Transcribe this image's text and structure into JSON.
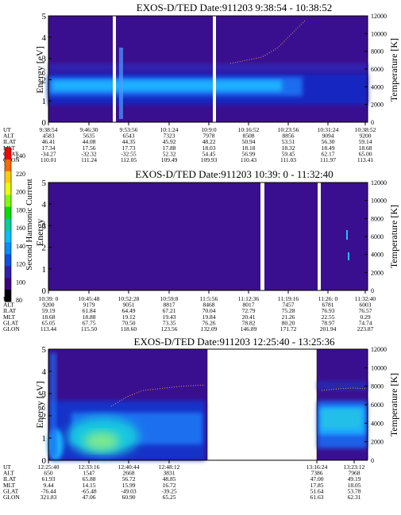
{
  "colorbar": {
    "label": "Second Harmonic Current",
    "ticks": [
      "240",
      "220",
      "200",
      "180",
      "160",
      "140",
      "120",
      "100",
      "80"
    ],
    "colors": [
      "#ff0000",
      "#ff6a00",
      "#ffcc00",
      "#e8ff00",
      "#7dff00",
      "#00e000",
      "#00d0a0",
      "#00c0ff",
      "#0090ff",
      "#1050e0",
      "#3020b0",
      "#400080",
      "#000000"
    ]
  },
  "chart_data": [
    {
      "type": "heatmap",
      "title": "EXOS-D/TED    Date:911203   9:38:54 - 10:38:52",
      "ylabel": "Energy [eV]",
      "ylabel_right": "Temperature [K]",
      "ylim": [
        0,
        5
      ],
      "yticks": [
        "0",
        "1",
        "2",
        "3",
        "4",
        "5"
      ],
      "ylim_right": [
        0,
        12000
      ],
      "yticks_right": [
        "0",
        "2000",
        "4000",
        "6000",
        "8000",
        "10000",
        "12000"
      ],
      "row_labels": [
        "UT",
        "ALT",
        "ILAT",
        "MLT",
        "GLAT",
        "GLON"
      ],
      "columns": [
        [
          "9:38:54",
          "4583",
          "46.41",
          "17.34",
          "-34.27",
          "110.01"
        ],
        [
          "9:46:30",
          "5635",
          "44.08",
          "17.56",
          "-32.32",
          "111.24"
        ],
        [
          "9:53:56",
          "6543",
          "44.35",
          "17.73",
          "-32.55",
          "112.05"
        ],
        [
          "10:1:24",
          "7323",
          "45.92",
          "17.88",
          "52.32",
          "109.49"
        ],
        [
          "10:9:0",
          "7978",
          "48.22",
          "18.03",
          "54.45",
          "109.93"
        ],
        [
          "10:16:52",
          "8508",
          "50.94",
          "18.18",
          "56.99",
          "110.43"
        ],
        [
          "10:23:56",
          "8856",
          "53.51",
          "18.32",
          "59.45",
          "111.03"
        ],
        [
          "10:31:24",
          "9094",
          "56.30",
          "18.49",
          "62.17",
          "111.97"
        ],
        [
          "10:38:52",
          "9200",
          "59.14",
          "18.68",
          "65.00",
          "113.41"
        ]
      ]
    },
    {
      "type": "heatmap",
      "title": "EXOS-D/TED    Date:911203   10:39: 0 - 11:32:40",
      "ylabel": "Energy",
      "ylabel_right": "Temperature [K]",
      "ylim": [
        0,
        5
      ],
      "yticks": [
        "0",
        "1",
        "2",
        "3",
        "4",
        "5"
      ],
      "ylim_right": [
        0,
        12000
      ],
      "yticks_right": [
        "0",
        "2000",
        "4000",
        "6000",
        "8000",
        "10000",
        "12000"
      ],
      "row_labels": [
        "UT",
        "ALT",
        "ILAT",
        "MLT",
        "GLAT",
        "GLON"
      ],
      "columns": [
        [
          "10:39: 0",
          "9200",
          "59.19",
          "18.68",
          "65.05",
          "113.44"
        ],
        [
          "10:45:48",
          "9179",
          "61.84",
          "18.88",
          "67.75",
          "115.50"
        ],
        [
          "10:52:28",
          "9051",
          "64.49",
          "19.12",
          "70.50",
          "118.60"
        ],
        [
          "10:59:8",
          "8817",
          "67.21",
          "19.43",
          "73.35",
          "123.56"
        ],
        [
          "11:5:56",
          "8468",
          "70.04",
          "19.84",
          "76.26",
          "132.09"
        ],
        [
          "11:12:36",
          "8017",
          "72.79",
          "20.41",
          "78.82",
          "146.89"
        ],
        [
          "11:19:16",
          "7457",
          "75.28",
          "21.26",
          "80.20",
          "171.72"
        ],
        [
          "11:26: 0",
          "6781",
          "76.93",
          "22.55",
          "78.97",
          "201.94"
        ],
        [
          "11:32:40",
          "6003",
          "76.57",
          "0.29",
          "74.74",
          "223.87"
        ]
      ]
    },
    {
      "type": "heatmap",
      "title": "EXOS-D/TED    Date:911203   12:25:40 - 13:25:36",
      "ylabel": "Energy [eV]",
      "ylabel_right": "Temperature [K]",
      "ylim": [
        0,
        5
      ],
      "yticks": [
        "0",
        "1",
        "2",
        "3",
        "4",
        "5"
      ],
      "ylim_right": [
        0,
        12000
      ],
      "yticks_right": [
        "0",
        "2000",
        "4000",
        "6000",
        "8000",
        "10000",
        "12000"
      ],
      "row_labels": [
        "UT",
        "ALT",
        "ILAT",
        "MLT",
        "GLAT",
        "GLON"
      ],
      "columns": [
        [
          "12:25:40",
          "650",
          "61.93",
          "9.44",
          "-76.44",
          "321.83"
        ],
        [
          "12:33:16",
          "1547",
          "65.88",
          "14.15",
          "-65.48",
          "47.06"
        ],
        [
          "12:40:44",
          "2668",
          "56.72",
          "15.99",
          "-49.03",
          "60.90"
        ],
        [
          "12:48:12",
          "3831",
          "48.85",
          "16.72",
          "-39.25",
          "65.25"
        ],
        [
          "13:16:24",
          "7386",
          "47.00",
          "17.85",
          "51.64",
          "61.63"
        ],
        [
          "13:23:12",
          "7968",
          "49.19",
          "18.05",
          "53.78",
          "62.31"
        ]
      ]
    }
  ]
}
